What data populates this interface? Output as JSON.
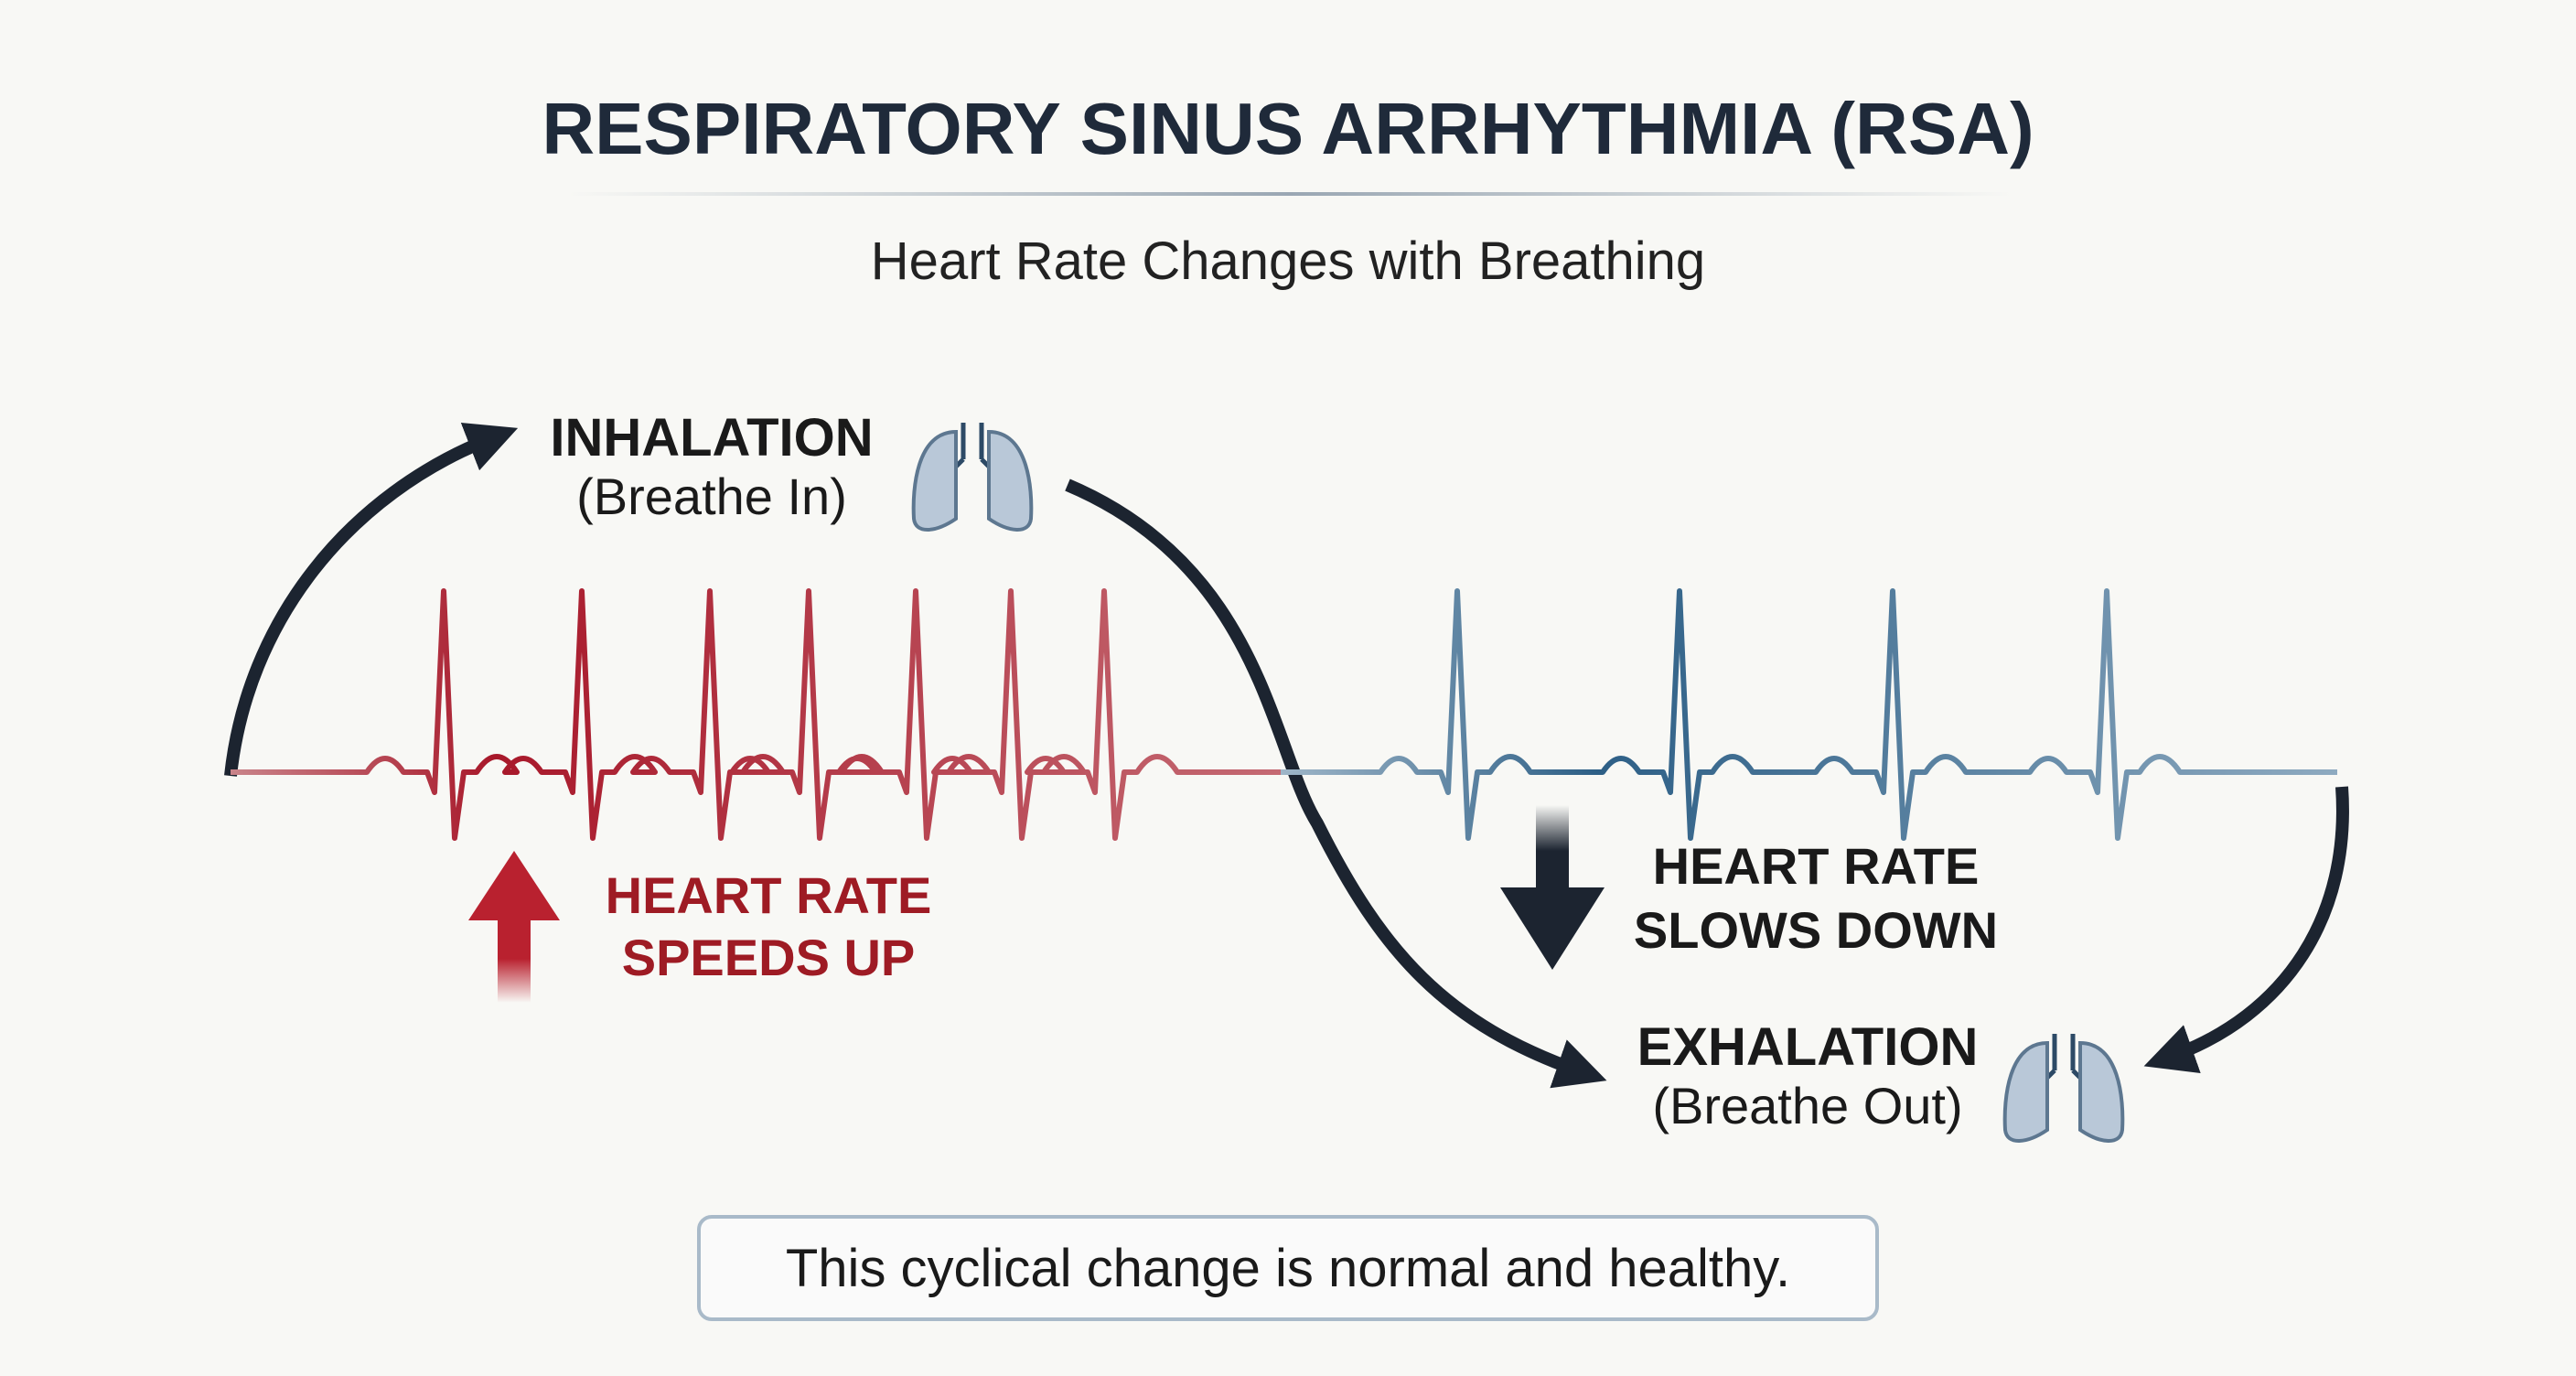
{
  "header": {
    "title": "RESPIRATORY SINUS ARRHYTHMIA (RSA)",
    "subtitle": "Heart Rate Changes with Breathing"
  },
  "inhalation": {
    "label": "INHALATION",
    "sub": "(Breathe In)"
  },
  "speeds_up": {
    "lines": [
      "HEART RATE",
      "SPEEDS UP"
    ]
  },
  "slows_down": {
    "lines": [
      "HEART RATE",
      "SLOWS DOWN"
    ]
  },
  "exhalation": {
    "label": "EXHALATION",
    "sub": "(Breathe Out)"
  },
  "note": "This cyclical change is normal and healthy."
}
